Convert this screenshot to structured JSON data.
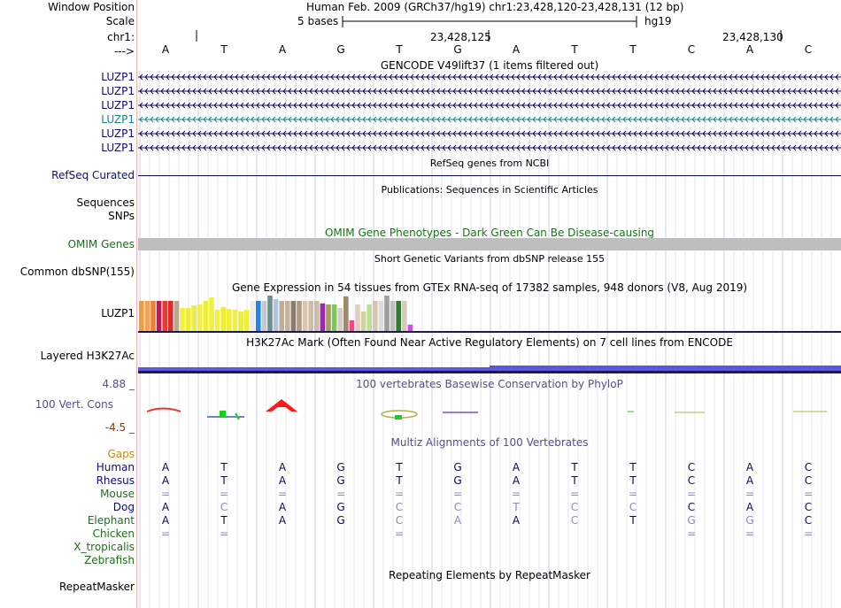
{
  "header": {
    "window_position_label": "Window Position",
    "window_position_value": "Human Feb. 2009 (GRCh37/hg19)   chr1:23,428,120-23,428,131 (12 bp)",
    "scale_label": "Scale",
    "scale_value": "5 bases",
    "scale_assembly": "hg19",
    "chr_label": "chr1:",
    "coord_1": "23,428,125",
    "coord_2": "23,428,130",
    "strand_label": "--->",
    "bases": [
      "A",
      "T",
      "A",
      "G",
      "T",
      "G",
      "A",
      "T",
      "T",
      "C",
      "A",
      "C"
    ]
  },
  "gencode": {
    "title": "GENCODE V49lift37 (1 items filtered out)",
    "tracks": [
      "LUZP1",
      "LUZP1",
      "LUZP1",
      "LUZP1",
      "LUZP1",
      "LUZP1"
    ],
    "highlight_index": 3
  },
  "refseq": {
    "title": "RefSeq genes from NCBI",
    "label": "RefSeq Curated"
  },
  "publications": {
    "title": "Publications: Sequences in Scientific Articles",
    "label_1": "Sequences",
    "label_2": "SNPs"
  },
  "omim": {
    "title": "OMIM Gene Phenotypes - Dark Green Can Be Disease-causing",
    "label": "OMIM Genes"
  },
  "dbsnp": {
    "title": "Short Genetic Variants from dbSNP release 155",
    "label": "Common dbSNP(155)"
  },
  "gtex": {
    "title": "Gene Expression in 54 tissues from GTEx RNA-seq of 17382 samples, 948 donors (V8, Aug 2019)",
    "label": "LUZP1",
    "bars": [
      {
        "c": "#f59a3b",
        "h": 0.85
      },
      {
        "c": "#f4a05a",
        "h": 0.85
      },
      {
        "c": "#e8843a",
        "h": 0.85
      },
      {
        "c": "#c2185b",
        "h": 0.85
      },
      {
        "c": "#e53935",
        "h": 0.85
      },
      {
        "c": "#d32f2f",
        "h": 0.85
      },
      {
        "c": "#bda48a",
        "h": 0.85
      },
      {
        "c": "#f0f040",
        "h": 0.65
      },
      {
        "c": "#eeee3a",
        "h": 0.65
      },
      {
        "c": "#eded3e",
        "h": 0.72
      },
      {
        "c": "#f2f23a",
        "h": 0.75
      },
      {
        "c": "#eeee40",
        "h": 0.85
      },
      {
        "c": "#f0f040",
        "h": 0.95
      },
      {
        "c": "#f2f23c",
        "h": 0.6
      },
      {
        "c": "#eeee3a",
        "h": 0.68
      },
      {
        "c": "#efef3c",
        "h": 0.62
      },
      {
        "c": "#f1f13c",
        "h": 0.6
      },
      {
        "c": "#ecec3a",
        "h": 0.55
      },
      {
        "c": "#f0f03a",
        "h": 0.6
      },
      {
        "c": "#ececec",
        "h": 0.85
      },
      {
        "c": "#1e88e5",
        "h": 0.85
      },
      {
        "c": "#c8c8c8",
        "h": 0.85
      },
      {
        "c": "#6b8e8e",
        "h": 1.0
      },
      {
        "c": "#b0c4de",
        "h": 0.9
      },
      {
        "c": "#bfae98",
        "h": 0.85
      },
      {
        "c": "#c4b49e",
        "h": 0.85
      },
      {
        "c": "#8d7a6a",
        "h": 0.85
      },
      {
        "c": "#b09a84",
        "h": 0.85
      },
      {
        "c": "#d7c6b2",
        "h": 0.85
      },
      {
        "c": "#d0bca8",
        "h": 0.85
      },
      {
        "c": "#ccbaa4",
        "h": 0.85
      },
      {
        "c": "#9c27b0",
        "h": 0.78
      },
      {
        "c": "#9fa060",
        "h": 0.75
      },
      {
        "c": "#7ec850",
        "h": 0.75
      },
      {
        "c": "#d7ccc8",
        "h": 0.65
      },
      {
        "c": "#9e8a6a",
        "h": 0.98
      },
      {
        "c": "#ff4081",
        "h": 0.3
      },
      {
        "c": "#e0cfc0",
        "h": 0.75
      },
      {
        "c": "#d0d0a8",
        "h": 0.55
      },
      {
        "c": "#b9e08a",
        "h": 0.75
      },
      {
        "c": "#d4c4b0",
        "h": 0.85
      },
      {
        "c": "#dcdcdc",
        "h": 0.85
      },
      {
        "c": "#9e9e9e",
        "h": 1.0
      },
      {
        "c": "#c0c0c0",
        "h": 0.85
      },
      {
        "c": "#2e7d32",
        "h": 0.85
      },
      {
        "c": "#d6c8ba",
        "h": 0.85
      },
      {
        "c": "#e040fb",
        "h": 0.18
      }
    ]
  },
  "h3k27ac": {
    "title": "H3K27Ac Mark (Often Found Near Active Regulatory Elements) on 7 cell lines from ENCODE",
    "label": "Layered H3K27Ac"
  },
  "conservation": {
    "title": "100 vertebrates Basewise Conservation by PhyloP",
    "label": "100 Vert. Cons",
    "max": "4.88 _",
    "min": "-4.5 _"
  },
  "multiz": {
    "title": "Multiz Alignments of 100 Vertebrates",
    "gaps_label": "Gaps",
    "species": [
      {
        "name": "Human",
        "cls": "nav",
        "bases": [
          "A",
          "T",
          "A",
          "G",
          "T",
          "G",
          "A",
          "T",
          "T",
          "C",
          "A",
          "C"
        ],
        "dim": []
      },
      {
        "name": "Rhesus",
        "cls": "nav",
        "bases": [
          "A",
          "T",
          "A",
          "G",
          "T",
          "G",
          "A",
          "T",
          "T",
          "C",
          "A",
          "C"
        ],
        "dim": []
      },
      {
        "name": "Mouse",
        "cls": "green",
        "bases": [
          "=",
          "=",
          "=",
          "=",
          "=",
          "=",
          "=",
          "=",
          "=",
          "=",
          "=",
          "="
        ],
        "dim": [
          0,
          1,
          2,
          3,
          4,
          5,
          6,
          7,
          8,
          9,
          10,
          11
        ]
      },
      {
        "name": "Dog",
        "cls": "nav",
        "bases": [
          "A",
          "C",
          "A",
          "G",
          "C",
          "C",
          "T",
          "C",
          "C",
          "C",
          "A",
          "C"
        ],
        "dim": [
          1,
          4,
          5,
          6,
          7,
          8
        ]
      },
      {
        "name": "Elephant",
        "cls": "green",
        "bases": [
          "A",
          "T",
          "A",
          "G",
          "C",
          "A",
          "A",
          "C",
          "T",
          "G",
          "G",
          "C"
        ],
        "dim": [
          4,
          5,
          7,
          9,
          10
        ]
      },
      {
        "name": "Chicken",
        "cls": "green",
        "bases": [
          "=",
          "=",
          "",
          "",
          "=",
          "",
          "",
          "",
          "",
          "=",
          "=",
          "="
        ],
        "dim": [
          0,
          1,
          4,
          9,
          10,
          11
        ]
      },
      {
        "name": "X_tropicalis",
        "cls": "green",
        "bases": [],
        "dim": []
      },
      {
        "name": "Zebrafish",
        "cls": "green",
        "bases": [],
        "dim": []
      }
    ]
  },
  "repeatmasker": {
    "title": "Repeating Elements by RepeatMasker",
    "label": "RepeatMasker"
  }
}
